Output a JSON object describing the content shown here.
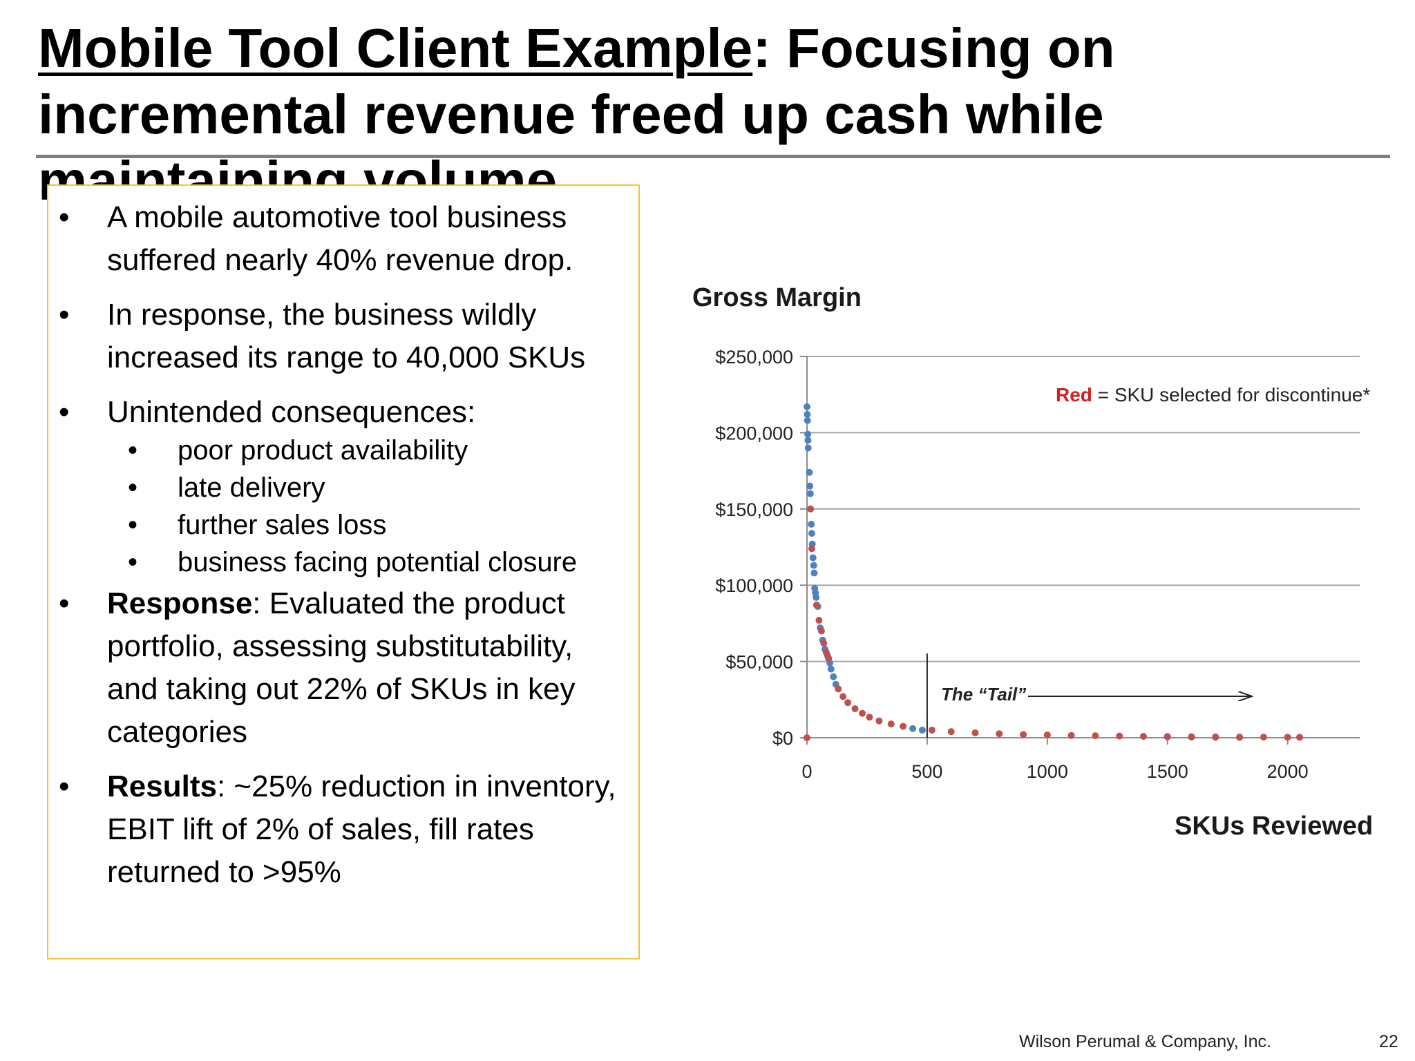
{
  "slide": {
    "title_underlined": "Mobile Tool Client Example",
    "title_rest": ":  Focusing on incremental revenue freed up cash while maintaining volume",
    "footer": "Wilson Perumal & Company, Inc.",
    "page_number": "22",
    "bullet_char": "•"
  },
  "bullets": [
    {
      "text": "A mobile automotive tool business suffered nearly 40% revenue drop."
    },
    {
      "text": "In response, the business wildly increased its  range to 40,000 SKUs"
    },
    {
      "text": "Unintended consequences:"
    },
    {
      "bold": "Response",
      "text": ": Evaluated the product portfolio, assessing substitutability, and taking out 22% of SKUs in key categories"
    },
    {
      "bold": "Results",
      "text": ": ~25% reduction in inventory, EBIT lift of 2% of sales, fill rates returned to >95%"
    }
  ],
  "sub_bullets": [
    "poor product availability",
    "late delivery",
    "further sales loss",
    "business facing potential closure"
  ],
  "chart_data": {
    "type": "scatter",
    "title": "Gross Margin",
    "xlabel": "SKUs Reviewed",
    "ylabel": "",
    "xlim": [
      0,
      2300
    ],
    "ylim": [
      0,
      250000
    ],
    "x_ticks": [
      0,
      500,
      1000,
      1500,
      2000
    ],
    "y_ticks": [
      0,
      50000,
      100000,
      150000,
      200000,
      250000
    ],
    "x_tick_labels": [
      "0",
      "500",
      "1000",
      "1500",
      "2000"
    ],
    "y_tick_labels": [
      "$0",
      "$50,000",
      "$100,000",
      "$150,000",
      "$200,000",
      "$250,000"
    ],
    "grid": "horizontal",
    "legend_note": {
      "red_word": "Red",
      "text": " = SKU selected for discontinue*"
    },
    "annotation": {
      "text": "The “Tail”",
      "x_start": 500
    },
    "colors": {
      "kept": "#4f81bd",
      "discontinued": "#c0504d",
      "grid": "#a6a6a6",
      "axis": "#8c8c8c"
    },
    "series": [
      {
        "color_key": "kept",
        "points": [
          [
            0,
            217000
          ],
          [
            1,
            212000
          ],
          [
            2,
            208000
          ],
          [
            3,
            199000
          ],
          [
            4,
            195000
          ],
          [
            5,
            190000
          ],
          [
            10,
            174000
          ],
          [
            12,
            165000
          ],
          [
            14,
            160000
          ],
          [
            18,
            140000
          ],
          [
            20,
            134000
          ],
          [
            22,
            127000
          ],
          [
            25,
            118000
          ],
          [
            28,
            113000
          ],
          [
            30,
            108000
          ],
          [
            32,
            98000
          ],
          [
            35,
            95000
          ],
          [
            38,
            92000
          ],
          [
            45,
            86000
          ],
          [
            55,
            72000
          ],
          [
            65,
            64000
          ],
          [
            75,
            58000
          ],
          [
            85,
            54000
          ],
          [
            95,
            49000
          ],
          [
            100,
            45000
          ],
          [
            110,
            40000
          ],
          [
            120,
            35000
          ],
          [
            440,
            6000
          ],
          [
            480,
            5000
          ],
          [
            1500,
            500
          ],
          [
            1600,
            400
          ],
          [
            1700,
            300
          ],
          [
            1800,
            200
          ]
        ]
      },
      {
        "color_key": "discontinued",
        "points": [
          [
            0,
            0
          ],
          [
            15,
            150000
          ],
          [
            20,
            124000
          ],
          [
            40,
            87000
          ],
          [
            50,
            77000
          ],
          [
            60,
            70000
          ],
          [
            70,
            62000
          ],
          [
            80,
            56000
          ],
          [
            90,
            52000
          ],
          [
            130,
            32000
          ],
          [
            150,
            27000
          ],
          [
            170,
            23000
          ],
          [
            200,
            19000
          ],
          [
            230,
            16000
          ],
          [
            260,
            13500
          ],
          [
            300,
            11000
          ],
          [
            350,
            9000
          ],
          [
            400,
            7500
          ],
          [
            520,
            5000
          ],
          [
            600,
            4000
          ],
          [
            700,
            3200
          ],
          [
            800,
            2600
          ],
          [
            900,
            2100
          ],
          [
            1000,
            1800
          ],
          [
            1100,
            1500
          ],
          [
            1200,
            1300
          ],
          [
            1300,
            1100
          ],
          [
            1400,
            900
          ],
          [
            1500,
            800
          ],
          [
            1600,
            650
          ],
          [
            1700,
            550
          ],
          [
            1800,
            450
          ],
          [
            1900,
            400
          ],
          [
            2000,
            350
          ],
          [
            2050,
            300
          ]
        ]
      }
    ]
  }
}
